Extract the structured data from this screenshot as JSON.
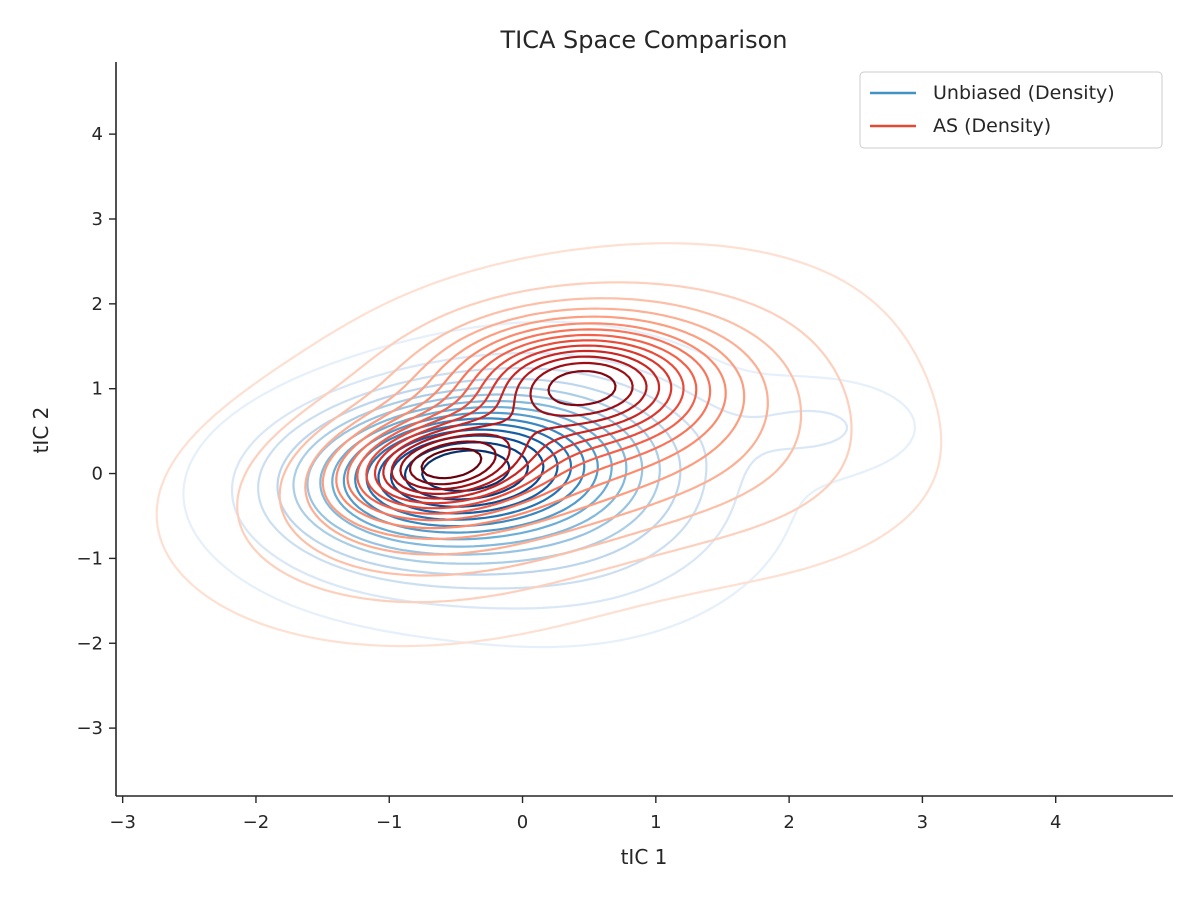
{
  "chart_data": {
    "type": "contour",
    "title": "TICA Space Comparison",
    "xlabel": "tIC 1",
    "ylabel": "tIC 2",
    "xlim": [
      -3.05,
      4.88
    ],
    "ylim": [
      -3.8,
      4.85
    ],
    "xticks": [
      -3,
      -2,
      -1,
      0,
      1,
      2,
      3,
      4
    ],
    "yticks": [
      -3,
      -2,
      -1,
      0,
      1,
      2,
      3,
      4
    ],
    "xtick_labels": [
      "−3",
      "−2",
      "−1",
      "0",
      "1",
      "2",
      "3",
      "4"
    ],
    "ytick_labels": [
      "−3",
      "−2",
      "−1",
      "0",
      "1",
      "2",
      "3",
      "4"
    ],
    "grid": false,
    "legend_position": "top-right",
    "series": [
      {
        "name": "Unbiased (Density)",
        "color": "#4292c6",
        "colormap": "Blues",
        "levels": 15,
        "components": [
          {
            "center": [
              -0.55,
              0.1
            ],
            "sigma": [
              0.75,
              0.55
            ],
            "rho": 0.15,
            "weight": 1.0
          },
          {
            "center": [
              0.3,
              -0.15
            ],
            "sigma": [
              0.8,
              0.85
            ],
            "rho": 0.0,
            "weight": 0.45
          },
          {
            "center": [
              2.25,
              0.55
            ],
            "sigma": [
              0.45,
              0.35
            ],
            "rho": 0.0,
            "weight": 0.13
          },
          {
            "center": [
              -0.9,
              -0.6
            ],
            "sigma": [
              0.7,
              0.6
            ],
            "rho": 0.0,
            "weight": 0.22
          }
        ]
      },
      {
        "name": "AS (Density)",
        "color": "#e34a33",
        "colormap": "Reds",
        "levels": 15,
        "components": [
          {
            "center": [
              -0.6,
              0.1
            ],
            "sigma": [
              0.45,
              0.35
            ],
            "rho": 0.2,
            "weight": 0.9
          },
          {
            "center": [
              0.45,
              1.1
            ],
            "sigma": [
              0.6,
              0.45
            ],
            "rho": 0.0,
            "weight": 0.85
          },
          {
            "center": [
              0.2,
              0.45
            ],
            "sigma": [
              1.15,
              1.0
            ],
            "rho": 0.35,
            "weight": 0.55
          },
          {
            "center": [
              1.7,
              0.1
            ],
            "sigma": [
              0.9,
              0.8
            ],
            "rho": 0.0,
            "weight": 0.12
          },
          {
            "center": [
              -1.0,
              -0.5
            ],
            "sigma": [
              0.9,
              0.75
            ],
            "rho": 0.0,
            "weight": 0.15
          }
        ]
      }
    ]
  }
}
